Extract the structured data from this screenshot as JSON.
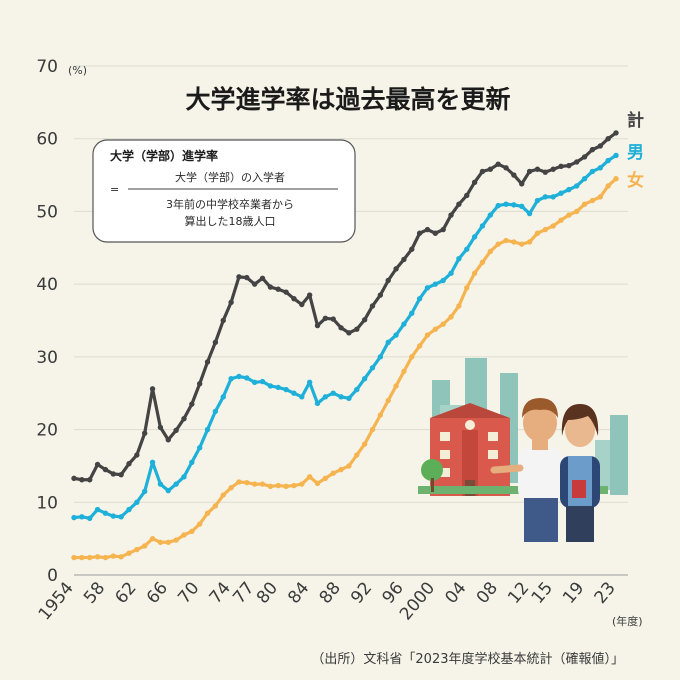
{
  "chart_data": {
    "type": "line",
    "title": "大学進学率は過去最高を更新",
    "y_unit": "(%)",
    "x_unit": "(年度)",
    "ylim": [
      0,
      70
    ],
    "y_ticks": [
      0,
      10,
      20,
      30,
      40,
      50,
      60,
      70
    ],
    "x_range": [
      1954,
      2023
    ],
    "x_ticks": [
      {
        "year": 1954,
        "label": "1954"
      },
      {
        "year": 1958,
        "label": "58"
      },
      {
        "year": 1962,
        "label": "62"
      },
      {
        "year": 1966,
        "label": "66"
      },
      {
        "year": 1970,
        "label": "70"
      },
      {
        "year": 1974,
        "label": "74"
      },
      {
        "year": 1977,
        "label": "77"
      },
      {
        "year": 1980,
        "label": "80"
      },
      {
        "year": 1984,
        "label": "84"
      },
      {
        "year": 1988,
        "label": "88"
      },
      {
        "year": 1992,
        "label": "92"
      },
      {
        "year": 1996,
        "label": "96"
      },
      {
        "year": 2000,
        "label": "2000"
      },
      {
        "year": 2004,
        "label": "04"
      },
      {
        "year": 2008,
        "label": "08"
      },
      {
        "year": 2012,
        "label": "12"
      },
      {
        "year": 2015,
        "label": "15"
      },
      {
        "year": 2019,
        "label": "19"
      },
      {
        "year": 2023,
        "label": "23"
      }
    ],
    "grid": true,
    "source": "（出所）文科省「2023年度学校基本統計（確報値）」",
    "definition_box": {
      "heading": "大学（学部）進学率",
      "equals": "=",
      "numerator": "大学（学部）の入学者",
      "denominator_line1": "3年前の中学校卒業者から",
      "denominator_line2": "算出した18歳人口"
    },
    "x": [
      1954,
      1955,
      1956,
      1957,
      1958,
      1959,
      1960,
      1961,
      1962,
      1963,
      1964,
      1965,
      1966,
      1967,
      1968,
      1969,
      1970,
      1971,
      1972,
      1973,
      1974,
      1975,
      1976,
      1977,
      1978,
      1979,
      1980,
      1981,
      1982,
      1983,
      1984,
      1985,
      1986,
      1987,
      1988,
      1989,
      1990,
      1991,
      1992,
      1993,
      1994,
      1995,
      1996,
      1997,
      1998,
      1999,
      2000,
      2001,
      2002,
      2003,
      2004,
      2005,
      2006,
      2007,
      2008,
      2009,
      2010,
      2011,
      2012,
      2013,
      2014,
      2015,
      2016,
      2017,
      2018,
      2019,
      2020,
      2021,
      2022,
      2023
    ],
    "series": [
      {
        "name": "計",
        "color": "#444444",
        "values": [
          13.3,
          13.1,
          13.1,
          15.2,
          14.5,
          13.9,
          13.8,
          15.3,
          16.5,
          19.5,
          25.6,
          20.3,
          18.6,
          19.9,
          21.5,
          23.5,
          26.3,
          29.3,
          32.0,
          35.0,
          37.5,
          41.0,
          40.9,
          40.0,
          40.8,
          39.6,
          39.3,
          38.9,
          38.0,
          37.2,
          38.5,
          34.3,
          35.3,
          35.2,
          34.0,
          33.3,
          33.8,
          35.1,
          37.0,
          38.5,
          40.5,
          42.1,
          43.4,
          44.8,
          47.0,
          47.5,
          47.0,
          47.5,
          49.5,
          51.0,
          52.2,
          54.0,
          55.5,
          55.8,
          56.5,
          56.0,
          55.0,
          53.8,
          55.5,
          55.8,
          55.4,
          55.8,
          56.2,
          56.3,
          56.8,
          57.5,
          58.5,
          59.0,
          60.0,
          60.8
        ]
      },
      {
        "name": "男",
        "color": "#1eb0d8",
        "values": [
          7.9,
          8.0,
          7.8,
          9.0,
          8.5,
          8.1,
          8.0,
          9.0,
          10.0,
          11.5,
          15.5,
          12.5,
          11.6,
          12.5,
          13.5,
          15.5,
          17.5,
          20.0,
          22.5,
          24.5,
          27.0,
          27.3,
          27.1,
          26.5,
          26.6,
          26.0,
          25.8,
          25.5,
          25.0,
          24.5,
          26.5,
          23.6,
          24.5,
          25.0,
          24.5,
          24.3,
          25.5,
          27.0,
          28.5,
          30.0,
          32.0,
          33.0,
          34.5,
          36.0,
          38.0,
          39.5,
          40.0,
          40.5,
          41.5,
          43.5,
          44.8,
          46.5,
          48.0,
          49.5,
          50.8,
          51.0,
          50.9,
          50.7,
          49.7,
          51.5,
          52.0,
          52.0,
          52.5,
          53.0,
          53.5,
          54.5,
          55.5,
          56.0,
          57.0,
          57.7
        ]
      },
      {
        "name": "女",
        "color": "#f6b451",
        "values": [
          2.4,
          2.4,
          2.4,
          2.5,
          2.4,
          2.6,
          2.5,
          3.0,
          3.5,
          4.0,
          5.0,
          4.5,
          4.5,
          4.8,
          5.5,
          6.0,
          7.0,
          8.5,
          9.5,
          11.0,
          12.0,
          12.8,
          12.7,
          12.5,
          12.5,
          12.2,
          12.3,
          12.2,
          12.3,
          12.5,
          13.5,
          12.6,
          13.3,
          14.0,
          14.5,
          15.0,
          16.5,
          18.0,
          20.0,
          22.0,
          24.0,
          26.0,
          28.0,
          30.0,
          31.5,
          33.0,
          33.8,
          34.5,
          35.5,
          37.0,
          39.5,
          41.5,
          43.0,
          44.5,
          45.5,
          46.0,
          45.8,
          45.5,
          45.8,
          47.0,
          47.5,
          48.0,
          48.8,
          49.5,
          50.0,
          51.0,
          51.5,
          52.0,
          53.5,
          54.5
        ]
      }
    ]
  }
}
